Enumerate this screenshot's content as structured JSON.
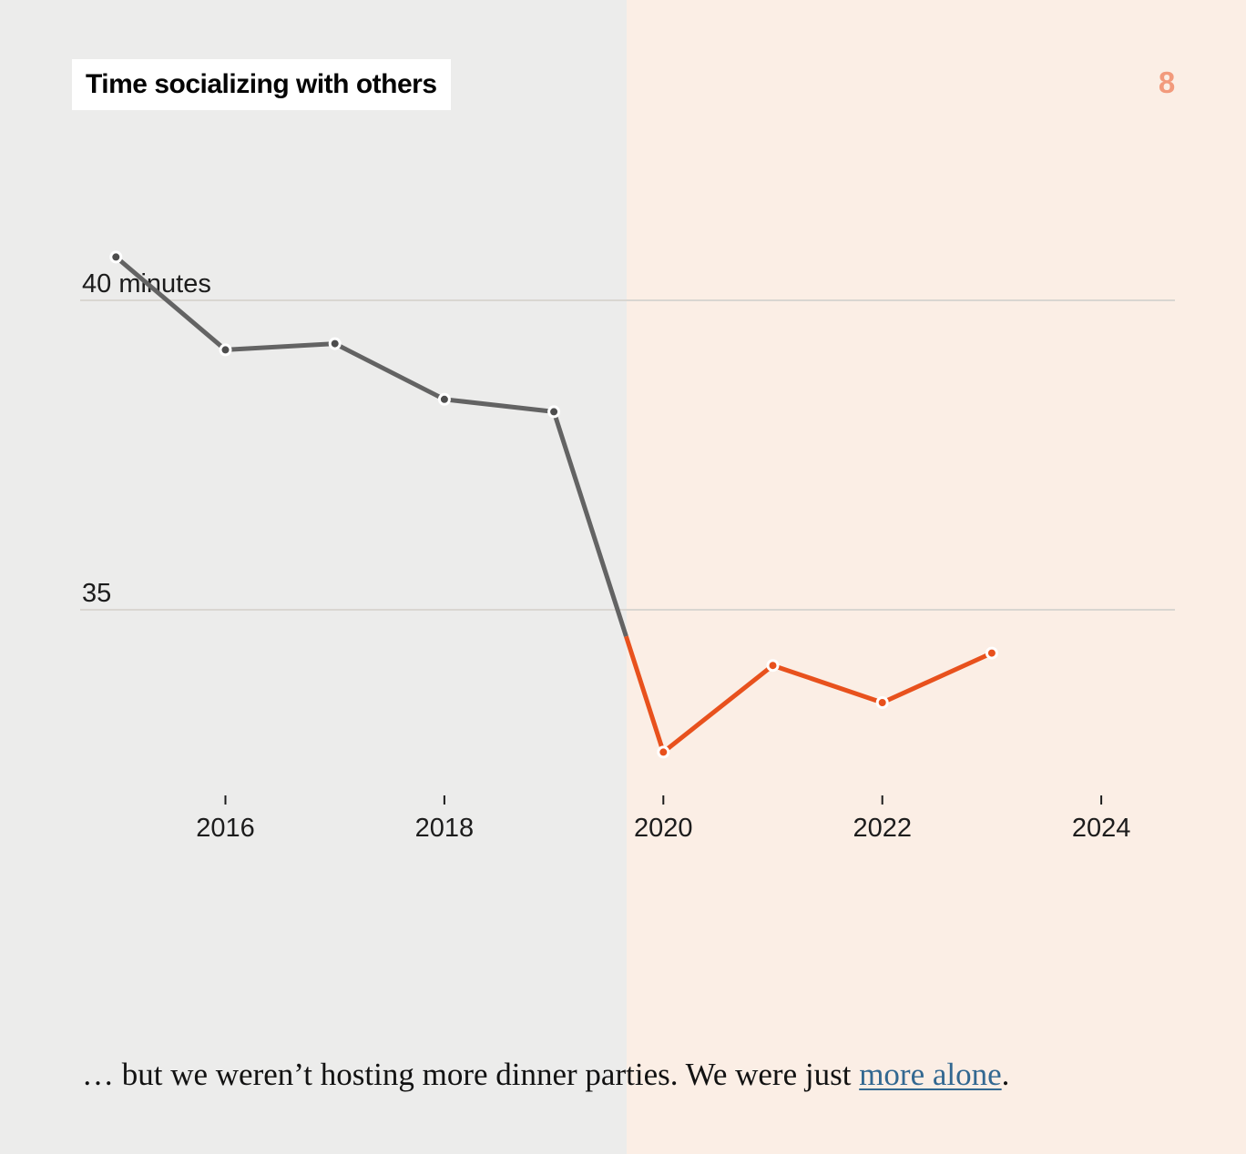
{
  "page": {
    "step_indicator": "8",
    "chart_title": "Time socializing with others",
    "caption": {
      "prefix": "… but we weren’t hosting more dinner parties. We were just ",
      "link_text": "more alone",
      "suffix": "."
    }
  },
  "colors": {
    "bg_left": "#ececeb",
    "bg_right": "#fbeee5",
    "gridline": "#d9d6d1",
    "axis_text": "#1c1c1c",
    "line_pre_2020": "#636363",
    "point_pre_2020": "#4d4d4d",
    "line_2020_onward": "#e8511d",
    "point_2020_onward": "#e8511d",
    "point_ring": "#ffffff",
    "step_indicator": "#f29a7c",
    "link": "#326891"
  },
  "chart_data": {
    "type": "line",
    "title": "Time socializing with others",
    "unit": "minutes",
    "x": [
      2015,
      2016,
      2017,
      2018,
      2019,
      2020,
      2021,
      2022,
      2023
    ],
    "values": [
      40.7,
      39.2,
      39.3,
      38.4,
      38.2,
      32.7,
      34.1,
      33.5,
      34.3
    ],
    "segments": [
      {
        "id": "pre-2020",
        "years": [
          2015,
          2016,
          2017,
          2018,
          2019
        ]
      },
      {
        "id": "2020-onward",
        "years": [
          2020,
          2021,
          2022,
          2023
        ]
      }
    ],
    "y_ticks": [
      {
        "value": 40,
        "label": "40 minutes"
      },
      {
        "value": 35,
        "label": "35"
      }
    ],
    "x_ticks": [
      {
        "value": 2016,
        "label": "2016"
      },
      {
        "value": 2018,
        "label": "2018"
      },
      {
        "value": 2020,
        "label": "2020"
      },
      {
        "value": 2022,
        "label": "2022"
      },
      {
        "value": 2024,
        "label": "2024"
      }
    ],
    "xlim": [
      2014.7,
      2024.7
    ],
    "ylim": [
      31.5,
      41.6
    ],
    "grid": "horizontal",
    "legend": "none",
    "background_split_year": 2019.66
  }
}
